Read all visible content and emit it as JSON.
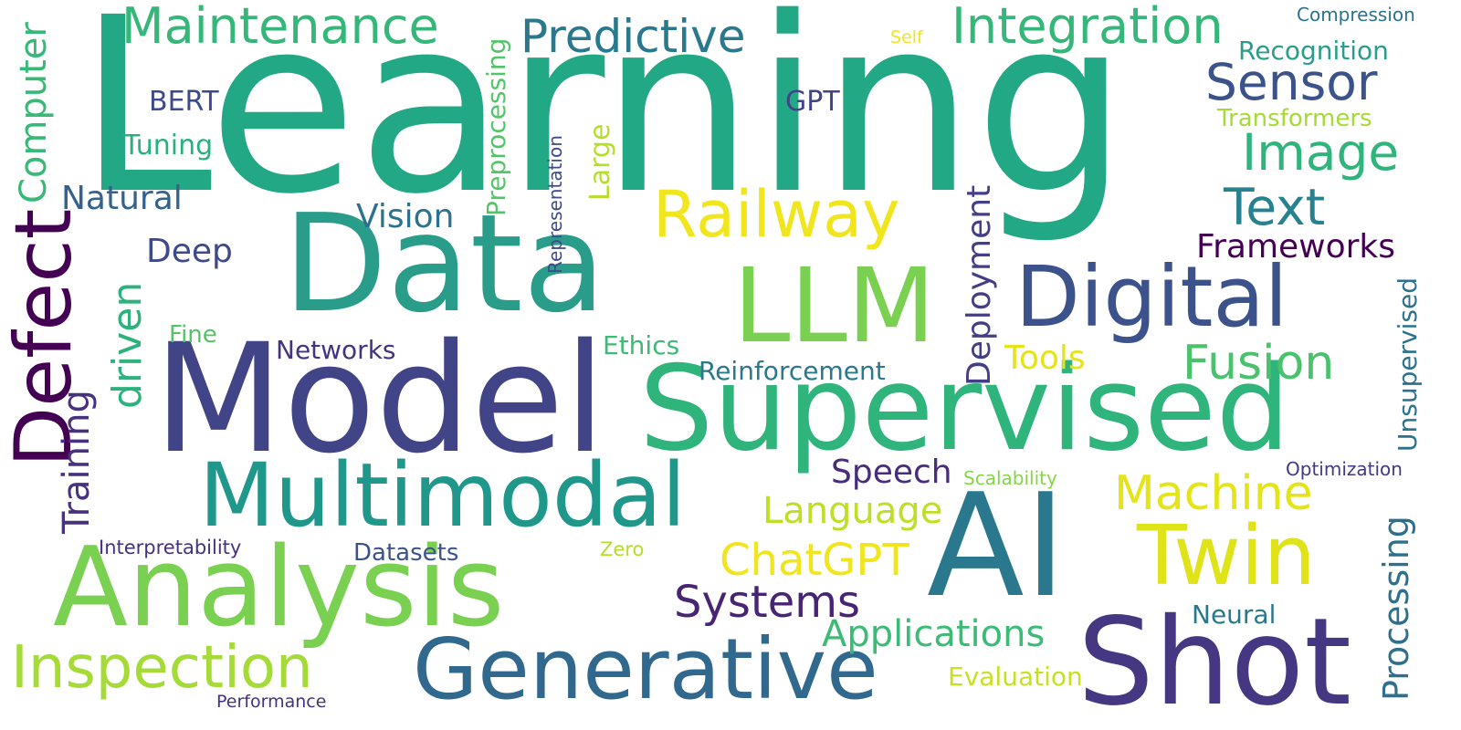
{
  "words": [
    {
      "text": "Learning",
      "color": "#22a884"
    },
    {
      "text": "Data",
      "color": "#2a9d8a"
    },
    {
      "text": "Model",
      "color": "#414487"
    },
    {
      "text": "Supervised",
      "color": "#2fb47c"
    },
    {
      "text": "AI",
      "color": "#2a788e"
    },
    {
      "text": "Analysis",
      "color": "#7ad151"
    },
    {
      "text": "Shot",
      "color": "#453781"
    },
    {
      "text": "LLM",
      "color": "#7ad151"
    },
    {
      "text": "Multimodal",
      "color": "#1f988b"
    },
    {
      "text": "Generative",
      "color": "#31688e"
    },
    {
      "text": "Digital",
      "color": "#3b528b"
    },
    {
      "text": "Twin",
      "color": "#dfe318"
    },
    {
      "text": "Defect",
      "color": "#440154"
    },
    {
      "text": "Railway",
      "color": "#f1e51d"
    },
    {
      "text": "Inspection",
      "color": "#a5db36"
    },
    {
      "text": "Maintenance",
      "color": "#35b779"
    },
    {
      "text": "Integration",
      "color": "#35b779"
    },
    {
      "text": "Predictive",
      "color": "#2a788e"
    },
    {
      "text": "Sensor",
      "color": "#3b528b"
    },
    {
      "text": "Image",
      "color": "#2fb47c"
    },
    {
      "text": "Text",
      "color": "#26828e"
    },
    {
      "text": "Machine",
      "color": "#e5e419"
    },
    {
      "text": "Fusion",
      "color": "#4ac16d"
    },
    {
      "text": "ChatGPT",
      "color": "#f1e51d"
    },
    {
      "text": "Systems",
      "color": "#482475"
    },
    {
      "text": "Applications",
      "color": "#3bbb75"
    },
    {
      "text": "Language",
      "color": "#bddf26"
    },
    {
      "text": "driven",
      "color": "#2db27d"
    },
    {
      "text": "Computer",
      "color": "#38b977"
    },
    {
      "text": "Training",
      "color": "#46327e"
    },
    {
      "text": "Processing",
      "color": "#2e6f8e"
    },
    {
      "text": "Deployment",
      "color": "#433e85"
    },
    {
      "text": "Frameworks",
      "color": "#440154"
    },
    {
      "text": "Natural",
      "color": "#33638d"
    },
    {
      "text": "Vision",
      "color": "#2c728e"
    },
    {
      "text": "Deep",
      "color": "#3e4a89"
    },
    {
      "text": "Tools",
      "color": "#e5e419"
    },
    {
      "text": "Speech",
      "color": "#472d7b"
    },
    {
      "text": "Evaluation",
      "color": "#c8e020"
    },
    {
      "text": "Reinforcement",
      "color": "#2a788e"
    },
    {
      "text": "Unsupervised",
      "color": "#2c728e"
    },
    {
      "text": "Preprocessing",
      "color": "#52c569"
    },
    {
      "text": "Recognition",
      "color": "#2a9d8a"
    },
    {
      "text": "Transformers",
      "color": "#a5db36"
    },
    {
      "text": "Tuning",
      "color": "#2ab07f"
    },
    {
      "text": "BERT",
      "color": "#3e4a89"
    },
    {
      "text": "GPT",
      "color": "#414487"
    },
    {
      "text": "Networks",
      "color": "#46327e"
    },
    {
      "text": "Ethics",
      "color": "#3bbb75"
    },
    {
      "text": "Datasets",
      "color": "#3b528b"
    },
    {
      "text": "Neural",
      "color": "#2a788e"
    },
    {
      "text": "Large",
      "color": "#b5de2b"
    },
    {
      "text": "Fine",
      "color": "#52c569"
    },
    {
      "text": "Interpretability",
      "color": "#46327e"
    },
    {
      "text": "Representation",
      "color": "#3e4a89"
    },
    {
      "text": "Scalability",
      "color": "#86d549"
    },
    {
      "text": "Optimization",
      "color": "#443983"
    },
    {
      "text": "Compression",
      "color": "#2c728e"
    },
    {
      "text": "Zero",
      "color": "#b5de2b"
    },
    {
      "text": "Self",
      "color": "#f1e51d"
    },
    {
      "text": "Performance",
      "color": "#46327e"
    }
  ]
}
